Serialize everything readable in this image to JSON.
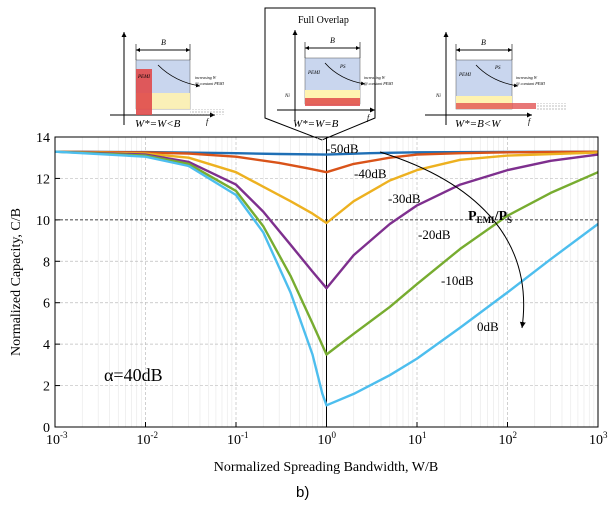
{
  "figure_label": "b)",
  "inset": {
    "full_overlap_title": "Full Overlap",
    "panels": [
      {
        "b_label": "B",
        "caption": "W*=W<B",
        "f_label": "f",
        "psi_label": "PEMI",
        "ps_label": "",
        "ni_label": "",
        "note1": "increasing W",
        "note2": "@ constant PEMI"
      },
      {
        "b_label": "B",
        "caption": "W*=W=B",
        "f_label": "f",
        "psi_label": "PEMI",
        "ps_label": "PS",
        "ni_label": "Ni",
        "note1": "increasing W",
        "note2": "@ constant PEMI"
      },
      {
        "b_label": "B",
        "caption": "W*=B<W",
        "f_label": "f",
        "psi_label": "PEMI",
        "ps_label": "PS",
        "ni_label": "Ni",
        "note1": "increasing W",
        "note2": "@ constant PEMI"
      }
    ]
  },
  "colors": {
    "-50dB": "#1f6fb5",
    "-40dB": "#d95319",
    "-30dB": "#edb120",
    "-20dB": "#7e2f8e",
    "-10dB": "#77ac30",
    "0dB": "#4dbeee",
    "axis": "#000000",
    "grid": "#bdbdbd"
  },
  "chart_data": {
    "type": "line",
    "xlabel": "Normalized Spreading Bandwidth, W/B",
    "ylabel": "Normalized Capacity, C/B",
    "xscale": "log",
    "xlim": [
      0.001,
      1000
    ],
    "ylim": [
      0,
      14
    ],
    "xticks": [
      {
        "value": 0.001,
        "base": "10",
        "exp": "-3"
      },
      {
        "value": 0.01,
        "base": "10",
        "exp": "-2"
      },
      {
        "value": 0.1,
        "base": "10",
        "exp": "-1"
      },
      {
        "value": 1,
        "base": "10",
        "exp": "0"
      },
      {
        "value": 10,
        "base": "10",
        "exp": "1"
      },
      {
        "value": 100,
        "base": "10",
        "exp": "2"
      },
      {
        "value": 1000,
        "base": "10",
        "exp": "3"
      }
    ],
    "yticks": [
      0,
      2,
      4,
      6,
      8,
      10,
      12,
      14
    ],
    "grid": true,
    "param_label_main": "P",
    "param_label_sub1": "EMI",
    "param_label_mid": "/P",
    "param_label_sub2": "S",
    "alpha_label": "α=40dB",
    "series": [
      {
        "name": "-50dB",
        "points": [
          [
            0.001,
            13.29
          ],
          [
            0.01,
            13.27
          ],
          [
            0.1,
            13.22
          ],
          [
            0.3,
            13.18
          ],
          [
            1,
            13.15
          ],
          [
            3,
            13.22
          ],
          [
            10,
            13.26
          ],
          [
            100,
            13.28
          ],
          [
            1000,
            13.29
          ]
        ]
      },
      {
        "name": "-40dB",
        "points": [
          [
            0.001,
            13.29
          ],
          [
            0.01,
            13.25
          ],
          [
            0.03,
            13.2
          ],
          [
            0.1,
            13.05
          ],
          [
            0.3,
            12.75
          ],
          [
            0.6,
            12.5
          ],
          [
            1,
            12.3
          ],
          [
            2,
            12.7
          ],
          [
            5,
            13.0
          ],
          [
            10,
            13.15
          ],
          [
            30,
            13.22
          ],
          [
            100,
            13.26
          ],
          [
            1000,
            13.29
          ]
        ]
      },
      {
        "name": "-30dB",
        "points": [
          [
            0.001,
            13.29
          ],
          [
            0.01,
            13.2
          ],
          [
            0.03,
            13.0
          ],
          [
            0.1,
            12.3
          ],
          [
            0.2,
            11.6
          ],
          [
            0.4,
            10.9
          ],
          [
            0.7,
            10.3
          ],
          [
            1,
            9.85
          ],
          [
            2,
            10.9
          ],
          [
            5,
            11.9
          ],
          [
            10,
            12.4
          ],
          [
            30,
            12.9
          ],
          [
            100,
            13.1
          ],
          [
            1000,
            13.25
          ]
        ]
      },
      {
        "name": "-20dB",
        "points": [
          [
            0.001,
            13.29
          ],
          [
            0.01,
            13.15
          ],
          [
            0.03,
            12.8
          ],
          [
            0.1,
            11.7
          ],
          [
            0.2,
            10.4
          ],
          [
            0.4,
            8.8
          ],
          [
            0.7,
            7.5
          ],
          [
            1,
            6.7
          ],
          [
            2,
            8.3
          ],
          [
            5,
            9.8
          ],
          [
            10,
            10.7
          ],
          [
            30,
            11.7
          ],
          [
            100,
            12.4
          ],
          [
            300,
            12.85
          ],
          [
            1000,
            13.15
          ]
        ]
      },
      {
        "name": "-10dB",
        "points": [
          [
            0.001,
            13.29
          ],
          [
            0.01,
            13.1
          ],
          [
            0.03,
            12.7
          ],
          [
            0.1,
            11.4
          ],
          [
            0.2,
            9.7
          ],
          [
            0.4,
            7.3
          ],
          [
            0.7,
            5.0
          ],
          [
            1,
            3.5
          ],
          [
            2,
            4.5
          ],
          [
            5,
            5.8
          ],
          [
            10,
            6.9
          ],
          [
            30,
            8.6
          ],
          [
            100,
            10.2
          ],
          [
            300,
            11.3
          ],
          [
            1000,
            12.3
          ]
        ]
      },
      {
        "name": "0dB",
        "points": [
          [
            0.001,
            13.29
          ],
          [
            0.01,
            13.05
          ],
          [
            0.03,
            12.6
          ],
          [
            0.1,
            11.2
          ],
          [
            0.2,
            9.4
          ],
          [
            0.4,
            6.5
          ],
          [
            0.7,
            3.5
          ],
          [
            0.9,
            1.6
          ],
          [
            1,
            1.05
          ],
          [
            2,
            1.6
          ],
          [
            5,
            2.5
          ],
          [
            10,
            3.3
          ],
          [
            30,
            4.8
          ],
          [
            100,
            6.5
          ],
          [
            300,
            8.1
          ],
          [
            1000,
            9.8
          ]
        ]
      }
    ]
  }
}
